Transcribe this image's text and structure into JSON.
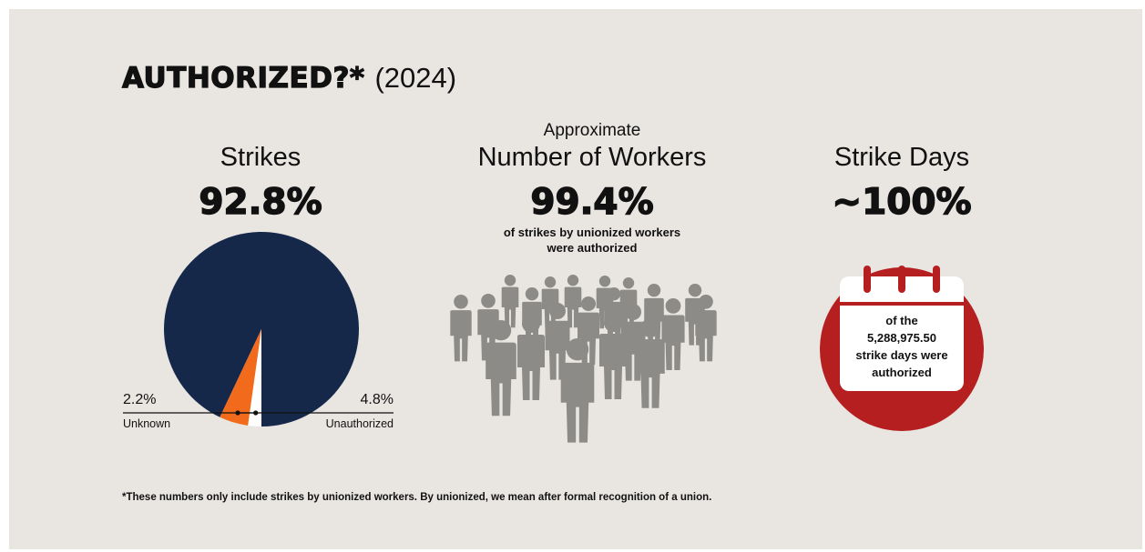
{
  "title": {
    "main": "AUTHORIZED?*",
    "year": "(2024)"
  },
  "strikes": {
    "label": "Strikes",
    "stat": "92.8%",
    "callouts": {
      "unknown_pct": "2.2%",
      "unknown_label": "Unknown",
      "unauthorized_pct": "4.8%",
      "unauthorized_label": "Unauthorized"
    }
  },
  "workers": {
    "prefix": "Approximate",
    "label": "Number of Workers",
    "stat": "99.4%",
    "caption_line1": "of strikes by unionized workers",
    "caption_line2": "were authorized",
    "icon": "people-crowd-icon"
  },
  "strike_days": {
    "label": "Strike Days",
    "stat": "~100%",
    "cal_line1": "of the",
    "cal_line2": "5,288,975.50",
    "cal_line3": "strike days were",
    "cal_line4": "authorized",
    "icon": "calendar-icon"
  },
  "footnote": "*These numbers only include strikes by unionized workers. By unionized, we mean after formal recognition of a union.",
  "colors": {
    "background": "#e9e6e2",
    "authorized": "#16284a",
    "unauthorized": "#f26a1b",
    "unknown": "#ffffff",
    "people": "#8c8b88",
    "calendar_circle": "#b51f1f"
  },
  "chart_data": {
    "type": "pie",
    "title": "Strikes",
    "categories": [
      "Authorized",
      "Unauthorized",
      "Unknown"
    ],
    "values": [
      92.8,
      4.8,
      2.2
    ],
    "unit": "%"
  }
}
